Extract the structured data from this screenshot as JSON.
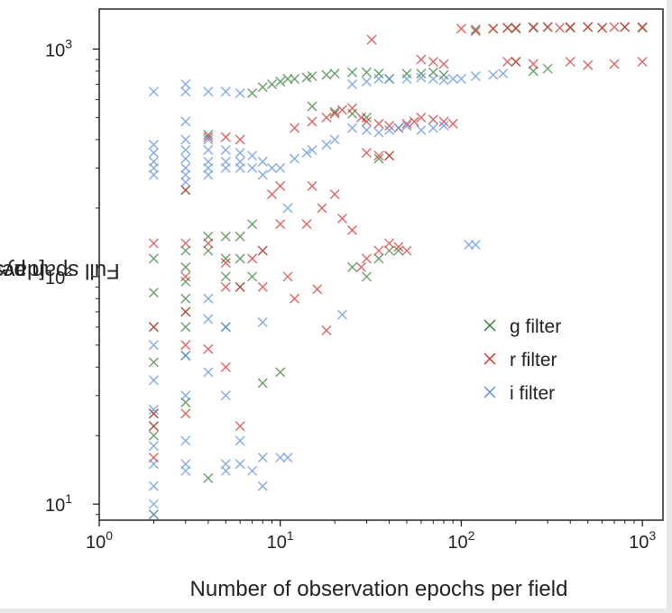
{
  "chart_data": {
    "type": "scatter",
    "xlabel": "Number of observation epochs per field",
    "ylabel_main": "Full span per pointing",
    "ylabel_unit": "[days]",
    "x_scale": "log",
    "y_scale": "log",
    "xlim": [
      1,
      1300
    ],
    "ylim": [
      8.5,
      1500
    ],
    "x_ticks": [
      {
        "value": 1,
        "label_base": "10",
        "label_exp": "0"
      },
      {
        "value": 10,
        "label_base": "10",
        "label_exp": "1"
      },
      {
        "value": 100,
        "label_base": "10",
        "label_exp": "2"
      },
      {
        "value": 1000,
        "label_base": "10",
        "label_exp": "3"
      }
    ],
    "y_ticks": [
      {
        "value": 10,
        "label_base": "10",
        "label_exp": "1"
      },
      {
        "value": 100,
        "label_base": "10",
        "label_exp": "2"
      },
      {
        "value": 1000,
        "label_base": "10",
        "label_exp": "3"
      }
    ],
    "grid": false,
    "legend_position": "right-middle",
    "marker": "x",
    "series": [
      {
        "name": "g filter",
        "color": "#3a7d3a",
        "points": [
          [
            2,
            120
          ],
          [
            2,
            85
          ],
          [
            2,
            60
          ],
          [
            2,
            42
          ],
          [
            2,
            25
          ],
          [
            2,
            22
          ],
          [
            2,
            20
          ],
          [
            2,
            9
          ],
          [
            3,
            240
          ],
          [
            3,
            130
          ],
          [
            3,
            110
          ],
          [
            3,
            95
          ],
          [
            3,
            80
          ],
          [
            3,
            70
          ],
          [
            3,
            60
          ],
          [
            3,
            45
          ],
          [
            3,
            28
          ],
          [
            4,
            420
          ],
          [
            4,
            150
          ],
          [
            4,
            130
          ],
          [
            4,
            13
          ],
          [
            5,
            150
          ],
          [
            5,
            120
          ],
          [
            5,
            100
          ],
          [
            5,
            60
          ],
          [
            6,
            150
          ],
          [
            6,
            120
          ],
          [
            6,
            90
          ],
          [
            7,
            170
          ],
          [
            7,
            100
          ],
          [
            7,
            640
          ],
          [
            8,
            130
          ],
          [
            8,
            680
          ],
          [
            8,
            34
          ],
          [
            9,
            700
          ],
          [
            10,
            38
          ],
          [
            10,
            720
          ],
          [
            11,
            740
          ],
          [
            12,
            740
          ],
          [
            14,
            750
          ],
          [
            15,
            760
          ],
          [
            18,
            770
          ],
          [
            20,
            780
          ],
          [
            25,
            790
          ],
          [
            30,
            790
          ],
          [
            35,
            780
          ],
          [
            40,
            740
          ],
          [
            15,
            560
          ],
          [
            20,
            530
          ],
          [
            25,
            520
          ],
          [
            30,
            500
          ],
          [
            35,
            330
          ],
          [
            40,
            340
          ],
          [
            25,
            110
          ],
          [
            30,
            100
          ],
          [
            35,
            120
          ],
          [
            40,
            130
          ],
          [
            45,
            130
          ],
          [
            50,
            780
          ],
          [
            60,
            780
          ],
          [
            70,
            790
          ],
          [
            80,
            770
          ],
          [
            120,
            1220
          ],
          [
            150,
            1230
          ],
          [
            180,
            1240
          ],
          [
            200,
            1230
          ],
          [
            250,
            1240
          ],
          [
            300,
            1250
          ],
          [
            400,
            1240
          ],
          [
            500,
            1250
          ],
          [
            600,
            1240
          ],
          [
            800,
            1250
          ],
          [
            1000,
            1240
          ],
          [
            200,
            880
          ],
          [
            250,
            800
          ],
          [
            300,
            820
          ]
        ]
      },
      {
        "name": "r filter",
        "color": "#d93030",
        "points": [
          [
            2,
            140
          ],
          [
            2,
            60
          ],
          [
            2,
            25
          ],
          [
            2,
            16
          ],
          [
            2,
            22
          ],
          [
            3,
            240
          ],
          [
            3,
            140
          ],
          [
            3,
            100
          ],
          [
            3,
            70
          ],
          [
            3,
            50
          ],
          [
            3,
            25
          ],
          [
            4,
            410
          ],
          [
            4,
            140
          ],
          [
            4,
            48
          ],
          [
            5,
            410
          ],
          [
            5,
            115
          ],
          [
            5,
            90
          ],
          [
            5,
            40
          ],
          [
            6,
            400
          ],
          [
            6,
            90
          ],
          [
            6,
            22
          ],
          [
            7,
            120
          ],
          [
            8,
            130
          ],
          [
            8,
            90
          ],
          [
            9,
            230
          ],
          [
            10,
            250
          ],
          [
            10,
            170
          ],
          [
            11,
            100
          ],
          [
            12,
            80
          ],
          [
            14,
            170
          ],
          [
            15,
            250
          ],
          [
            16,
            88
          ],
          [
            17,
            200
          ],
          [
            18,
            58
          ],
          [
            20,
            230
          ],
          [
            22,
            180
          ],
          [
            25,
            160
          ],
          [
            12,
            450
          ],
          [
            15,
            480
          ],
          [
            18,
            500
          ],
          [
            20,
            520
          ],
          [
            22,
            540
          ],
          [
            25,
            550
          ],
          [
            28,
            500
          ],
          [
            30,
            480
          ],
          [
            35,
            470
          ],
          [
            40,
            460
          ],
          [
            45,
            450
          ],
          [
            50,
            470
          ],
          [
            55,
            480
          ],
          [
            60,
            500
          ],
          [
            70,
            490
          ],
          [
            80,
            480
          ],
          [
            90,
            470
          ],
          [
            30,
            350
          ],
          [
            35,
            340
          ],
          [
            40,
            340
          ],
          [
            28,
            110
          ],
          [
            30,
            120
          ],
          [
            35,
            130
          ],
          [
            40,
            140
          ],
          [
            45,
            135
          ],
          [
            50,
            130
          ],
          [
            60,
            900
          ],
          [
            70,
            880
          ],
          [
            80,
            860
          ],
          [
            32,
            1100
          ],
          [
            100,
            1230
          ],
          [
            120,
            1200
          ],
          [
            150,
            1230
          ],
          [
            180,
            1240
          ],
          [
            200,
            1240
          ],
          [
            250,
            1250
          ],
          [
            300,
            1250
          ],
          [
            350,
            1240
          ],
          [
            400,
            1250
          ],
          [
            500,
            1250
          ],
          [
            600,
            1240
          ],
          [
            700,
            1250
          ],
          [
            800,
            1250
          ],
          [
            1000,
            1250
          ],
          [
            180,
            880
          ],
          [
            200,
            880
          ],
          [
            250,
            860
          ],
          [
            400,
            880
          ],
          [
            500,
            850
          ],
          [
            700,
            860
          ],
          [
            1000,
            880
          ]
        ]
      },
      {
        "name": "i filter",
        "color": "#5b8fe0",
        "points": [
          [
            2,
            650
          ],
          [
            2,
            380
          ],
          [
            2,
            350
          ],
          [
            2,
            320
          ],
          [
            2,
            300
          ],
          [
            2,
            280
          ],
          [
            2,
            50
          ],
          [
            2,
            35
          ],
          [
            2,
            26
          ],
          [
            2,
            18
          ],
          [
            2,
            15
          ],
          [
            2,
            12
          ],
          [
            2,
            10
          ],
          [
            2,
            9
          ],
          [
            3,
            700
          ],
          [
            3,
            650
          ],
          [
            3,
            480
          ],
          [
            3,
            400
          ],
          [
            3,
            360
          ],
          [
            3,
            330
          ],
          [
            3,
            300
          ],
          [
            3,
            280
          ],
          [
            3,
            260
          ],
          [
            3,
            45
          ],
          [
            3,
            30
          ],
          [
            3,
            19
          ],
          [
            3,
            15
          ],
          [
            3,
            14
          ],
          [
            4,
            650
          ],
          [
            4,
            400
          ],
          [
            4,
            360
          ],
          [
            4,
            320
          ],
          [
            4,
            300
          ],
          [
            4,
            280
          ],
          [
            4,
            80
          ],
          [
            4,
            65
          ],
          [
            4,
            38
          ],
          [
            5,
            650
          ],
          [
            5,
            360
          ],
          [
            5,
            320
          ],
          [
            5,
            300
          ],
          [
            5,
            60
          ],
          [
            5,
            30
          ],
          [
            5,
            15
          ],
          [
            5,
            14
          ],
          [
            6,
            640
          ],
          [
            6,
            350
          ],
          [
            6,
            320
          ],
          [
            6,
            300
          ],
          [
            6,
            19
          ],
          [
            6,
            15
          ],
          [
            7,
            340
          ],
          [
            7,
            300
          ],
          [
            7,
            14
          ],
          [
            8,
            320
          ],
          [
            8,
            280
          ],
          [
            8,
            63
          ],
          [
            8,
            16
          ],
          [
            8,
            12
          ],
          [
            9,
            300
          ],
          [
            10,
            300
          ],
          [
            10,
            16
          ],
          [
            11,
            200
          ],
          [
            11,
            16
          ],
          [
            12,
            330
          ],
          [
            14,
            350
          ],
          [
            15,
            360
          ],
          [
            18,
            380
          ],
          [
            20,
            400
          ],
          [
            22,
            68
          ],
          [
            25,
            700
          ],
          [
            30,
            720
          ],
          [
            35,
            740
          ],
          [
            40,
            740
          ],
          [
            50,
            740
          ],
          [
            60,
            750
          ],
          [
            70,
            740
          ],
          [
            80,
            730
          ],
          [
            90,
            740
          ],
          [
            100,
            740
          ],
          [
            120,
            760
          ],
          [
            150,
            770
          ],
          [
            170,
            780
          ],
          [
            25,
            450
          ],
          [
            30,
            440
          ],
          [
            35,
            430
          ],
          [
            40,
            440
          ],
          [
            45,
            450
          ],
          [
            50,
            460
          ],
          [
            60,
            440
          ],
          [
            70,
            450
          ],
          [
            80,
            460
          ],
          [
            110,
            138
          ],
          [
            120,
            138
          ]
        ]
      }
    ]
  }
}
